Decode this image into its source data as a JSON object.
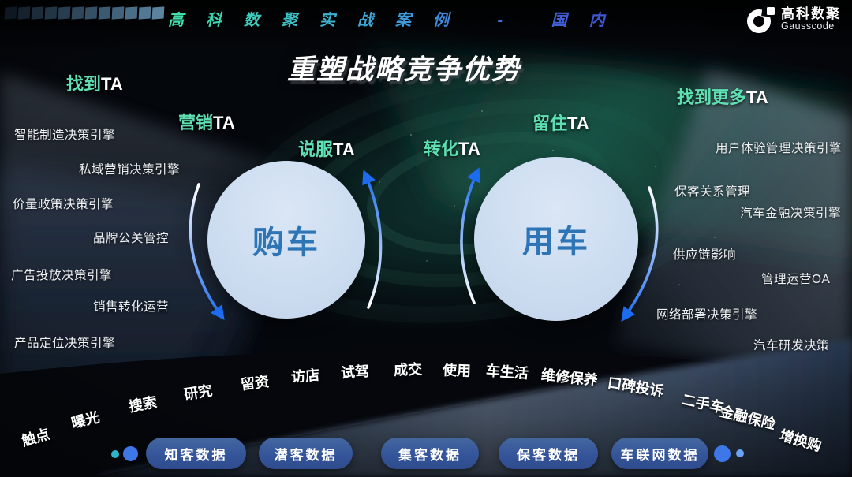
{
  "header": {
    "strip_title": "高科数聚实战案例 - 国内",
    "logo_icon": "gausscode-ring-mark",
    "logo_cn": "高科数聚",
    "logo_en": "Gausscode"
  },
  "title": "重塑战略竞争优势",
  "journey_labels": [
    {
      "prefix": "找到",
      "suffix": "TA"
    },
    {
      "prefix": "营销",
      "suffix": "TA"
    },
    {
      "prefix": "说服",
      "suffix": "TA"
    },
    {
      "prefix": "转化",
      "suffix": "TA"
    },
    {
      "prefix": "留住",
      "suffix": "TA"
    },
    {
      "prefix": "找到更多",
      "suffix": "TA"
    }
  ],
  "left_engines": [
    "智能制造决策引擎",
    "私域营销决策引擎",
    "价量政策决策引擎",
    "品牌公关管控",
    "广告投放决策引擎",
    "销售转化运营",
    "产品定位决策引擎"
  ],
  "right_engines": [
    "用户体验管理决策引擎",
    "保客关系管理",
    "汽车金融决策引擎",
    "供应链影响",
    "管理运营OA",
    "网络部署决策引擎",
    "汽车研发决策"
  ],
  "circles": {
    "left": "购车",
    "right": "用车"
  },
  "stages": [
    "触点",
    "曝光",
    "搜索",
    "研究",
    "留资",
    "访店",
    "试驾",
    "成交",
    "使用",
    "车生活",
    "维修保养",
    "口碑投诉",
    "二手车",
    "金融保险",
    "增换购"
  ],
  "data_pills": [
    "知客数据",
    "潜客数据",
    "集客数据",
    "保客数据",
    "车联网数据"
  ],
  "colors": {
    "mint_accent": "#5fe0b2",
    "arrow_blue": "#1d6bf0",
    "circle_fill": "#cdddf0",
    "circle_text": "#2e75b6",
    "pill_bg": "#35559a",
    "teal_dot": "#2fb3c9",
    "blue_dot": "#3d77e8"
  }
}
